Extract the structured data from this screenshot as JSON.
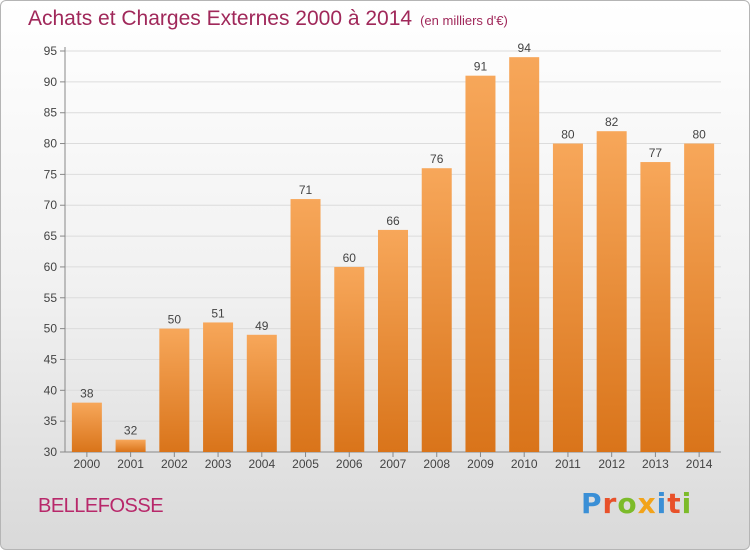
{
  "title": "Achats et Charges Externes 2000 à 2014",
  "unit": "(en milliers d'€)",
  "place": "BELLEFOSSE",
  "logo": {
    "letters": [
      {
        "ch": "P",
        "color": "#3a8fd6"
      },
      {
        "ch": "r",
        "color": "#e8512a"
      },
      {
        "ch": "o",
        "color": "#7cbb2a"
      },
      {
        "ch": "x",
        "color": "#f2a31a"
      },
      {
        "ch": "i",
        "color": "#3a8fd6"
      },
      {
        "ch": "t",
        "color": "#e8512a"
      },
      {
        "ch": "i",
        "color": "#7cbb2a"
      }
    ]
  },
  "chart_data": {
    "type": "bar",
    "categories": [
      "2000",
      "2001",
      "2002",
      "2003",
      "2004",
      "2005",
      "2006",
      "2007",
      "2008",
      "2009",
      "2010",
      "2011",
      "2012",
      "2013",
      "2014"
    ],
    "values": [
      38,
      32,
      50,
      51,
      49,
      71,
      60,
      66,
      76,
      91,
      94,
      80,
      82,
      77,
      80
    ],
    "ylim": [
      30,
      95
    ],
    "yticks": [
      30,
      35,
      40,
      45,
      50,
      55,
      60,
      65,
      70,
      75,
      80,
      85,
      90,
      95
    ],
    "grid": true,
    "bar_color": "#f0943a"
  }
}
